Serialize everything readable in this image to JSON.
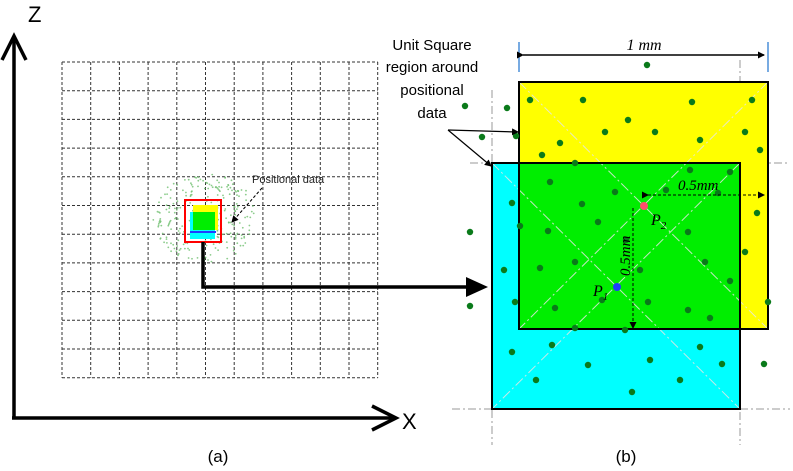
{
  "axes": {
    "z_label": "Z",
    "x_label": "X"
  },
  "panel_a": {
    "caption": "(a)",
    "annotation": "Positional data"
  },
  "panel_b": {
    "caption": "(b)",
    "unit_square_label_lines": [
      "Unit Square",
      "region around",
      "positional",
      "data"
    ],
    "width_label": "1 mm",
    "half_width_label": "0.5mm",
    "half_height_label": "0.5mm",
    "p1_label": "P",
    "p1_sub": "1",
    "p2_label": "P",
    "p2_sub": "2"
  },
  "colors": {
    "yellow_square": "#ffff00",
    "cyan_square": "#00ffff",
    "green_overlap": "#00ee00",
    "dot": "#0a7a1a",
    "p1": "#1f3cff",
    "p2": "#ff4d6d",
    "grid": "#333333",
    "highlight_box": "#ff0000"
  }
}
